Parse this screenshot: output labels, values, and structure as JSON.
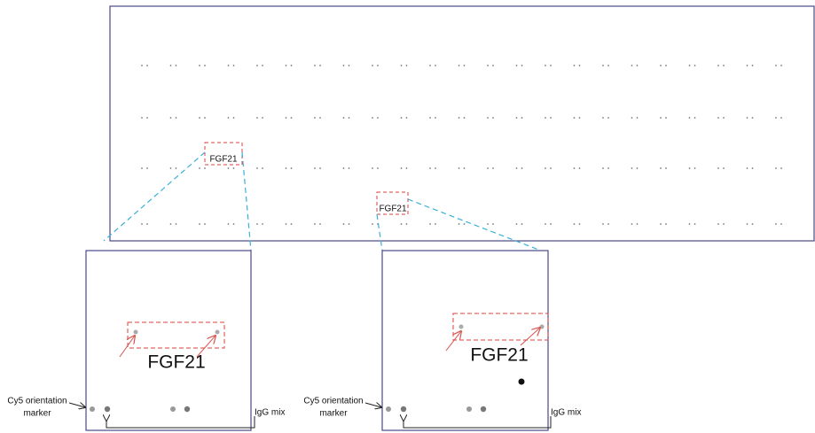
{
  "top_panel": {
    "labels": [
      "FGF21",
      "FGF21"
    ]
  },
  "insets": [
    {
      "label": "FGF21",
      "marker_label": [
        "Cy5 orientation",
        "marker"
      ],
      "control_label": "IgG mix"
    },
    {
      "label": "FGF21",
      "marker_label": [
        "Cy5 orientation",
        "marker"
      ],
      "control_label": "IgG mix"
    }
  ]
}
